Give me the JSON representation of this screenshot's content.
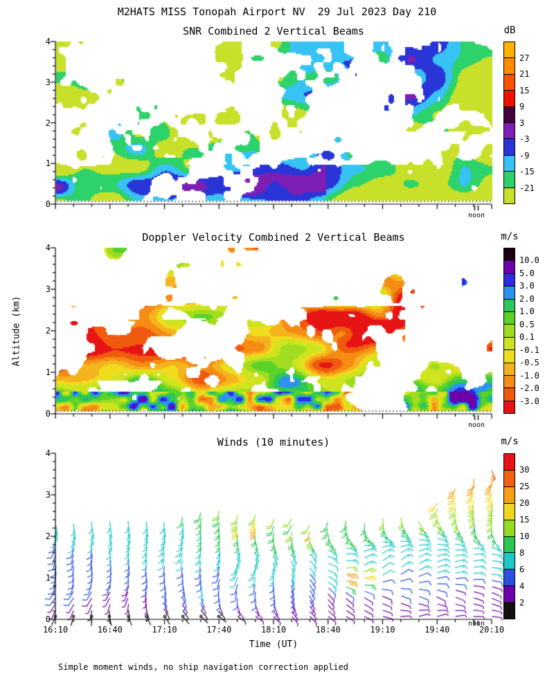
{
  "title": "M2HATS MISS Tonopah Airport NV  29 Jul 2023 Day 210",
  "footer": "Simple moment winds, no ship navigation correction applied",
  "noon_label": "noon",
  "x_axis": {
    "title": "Time (UT)",
    "ticks": [
      "16:10",
      "16:40",
      "17:10",
      "17:40",
      "18:10",
      "18:40",
      "19:10",
      "19:40",
      "20:10"
    ],
    "minor_tick_minutes": 10,
    "range_minutes": 240
  },
  "y_axis": {
    "title": "Altitude (km)",
    "ticks": [
      "0",
      "1",
      "2",
      "3",
      "4"
    ],
    "range": [
      0,
      4
    ],
    "minor_tick_km": 0.2
  },
  "chart_data": [
    {
      "type": "heatmap",
      "title": "SNR Combined 2 Vertical Beams",
      "x": "Time (UT) 16:10 to 20:10",
      "y": "Altitude 0 to 4 km",
      "colorbar": {
        "unit": "dB",
        "tick_labels": [
          "27",
          "21",
          "15",
          "9",
          "3",
          "-3",
          "-9",
          "-15",
          "-21"
        ],
        "colors": [
          "#ffb100",
          "#ff8a00",
          "#ff5000",
          "#ee1000",
          "#43003c",
          "#7d1fb4",
          "#2a35d8",
          "#38c3f5",
          "#2ed26a",
          "#c8e02a"
        ]
      },
      "summary": "Patchy clear-air echoes mostly below 2.5 km; strongest layer (-9 to -3 dB, cyan/blue) at 0.2-0.9 km before about 18:30; background echoes -21 to -15 dB (yellow-green/green); intermittent vertical streaks reach 4 km, denser after 19:10 and in the upper right corner."
    },
    {
      "type": "heatmap",
      "title": "Doppler Velocity Combined 2 Vertical Beams",
      "x": "Time (UT) 16:10 to 20:10",
      "y": "Altitude 0 to 4 km",
      "colorbar": {
        "unit": "m/s",
        "tick_labels": [
          "10.0",
          "5.0",
          "3.0",
          "2.0",
          "1.0",
          "0.5",
          "0.1",
          "-0.1",
          "-0.5",
          "-1.0",
          "-2.0",
          "-3.0"
        ],
        "colors": [
          "#1c0016",
          "#6d00a8",
          "#2d2ae0",
          "#2e90f0",
          "#28c85a",
          "#5ad228",
          "#a0dc20",
          "#cde41e",
          "#f0dc1e",
          "#f5b41e",
          "#f58c14",
          "#f05a0f",
          "#e61414"
        ]
      },
      "summary": "Sparse near-zero vertical velocities (-0.1 to +0.5 m/s, yellow-green) below about 2.5 km; pockets of -0.5 to -3 m/s (yellow/orange/red) in the lowest 0.5 km and between 18:30-19:20 at 1-2.5 km; isolated +/-1-2 m/s speckle; a rising echo with mixed colors climbs from 3 to 4 km after 19:50."
    },
    {
      "type": "scatter",
      "marker": "wind-barb",
      "title": "Winds (10 minutes)",
      "x": "Time (UT) 16:10 to 20:10, one barb column every 10 minutes",
      "y": "Altitude 0 to 4 km",
      "colorbar": {
        "unit": "m/s",
        "tick_labels": [
          "30",
          "25",
          "20",
          "15",
          "10",
          "8",
          "6",
          "4",
          "2"
        ],
        "tick_values": [
          30,
          25,
          20,
          15,
          10,
          8,
          6,
          4,
          2
        ],
        "colors": [
          "#e61414",
          "#f0600f",
          "#f5a014",
          "#f0d81e",
          "#96dc20",
          "#28c850",
          "#1ec8c8",
          "#2a50e0",
          "#6d00a8",
          "#111111"
        ]
      },
      "summary": "Wind-barb columns every 10 minutes from the surface to about 2.5 km, extending to 3.7 km after 19:40; speeds 1-4 m/s (black/purple) near the surface, 4-8 m/s (blue/cyan) through 1.5 km, 8-15 m/s (green) near 2-2.5 km, 15-30 m/s (yellow/orange) above 3 km at the far right; isolated 25-30+ m/s (red) barbs near 17:50 at 2.2 km, near 18:30 at 2.1 km and 18:50 at 1 km."
    }
  ]
}
